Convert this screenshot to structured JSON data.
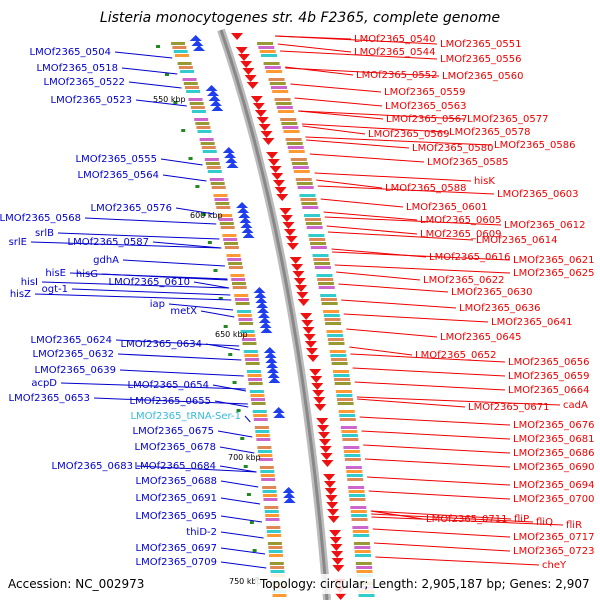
{
  "title": "Listeria monocytogenes str. 4b F2365, complete genome",
  "accession": "Accession: NC_002973",
  "summary": "Topology: circular; Length: 2,905,187 bp; Genes: 2,907",
  "colors": {
    "left_labels": "#0000cc",
    "right_labels": "#ee0000",
    "trna_label": "#33bbdd",
    "backbone": "#999999",
    "forward_strand": "#1f3fee",
    "reverse_strand": "#ee1111",
    "tick": "#228822"
  },
  "ticks": [
    "550 kbp",
    "600 kbp",
    "650 kbp",
    "700 kbp",
    "750 kbp"
  ],
  "left_labels": [
    "LMOf2365_0504",
    "LMOf2365_0518",
    "LMOf2365_0522",
    "LMOf2365_0523",
    "LMOf2365_0555",
    "LMOf2365_0564",
    "LMOf2365_0568",
    "LMOf2365_0576",
    "srlB",
    "srlE",
    "LMOf2365_0587",
    "gdhA",
    "hisE",
    "hisG",
    "hisI",
    "ogt-1",
    "hisZ",
    "LMOf2365_0610",
    "iap",
    "metX",
    "LMOf2365_0624",
    "LMOf2365_0634",
    "LMOf2365_0632",
    "LMOf2365_0639",
    "acpD",
    "LMOf2365_0654",
    "LMOf2365_0653",
    "LMOf2365_0655",
    "LMOf2365_tRNA-Ser-1",
    "LMOf2365_0675",
    "LMOf2365_0678",
    "LMOf2365_0683",
    "LMOf2365_0684",
    "LMOf2365_0688",
    "LMOf2365_0691",
    "LMOf2365_0695",
    "thiD-2",
    "LMOf2365_0697",
    "LMOf2365_0709"
  ],
  "right_labels": [
    "LMOf2365_0540",
    "LMOf2365_0544",
    "LMOf2365_0551",
    "LMOf2365_0556",
    "LMOf2365_0552",
    "LMOf2365_0560",
    "LMOf2365_0559",
    "LMOf2365_0563",
    "LMOf2365_0567",
    "LMOf2365_0577",
    "LMOf2365_0569",
    "LMOf2365_0578",
    "LMOf2365_0580",
    "LMOf2365_0586",
    "LMOf2365_0585",
    "hisK",
    "LMOf2365_0588",
    "LMOf2365_0603",
    "LMOf2365_0601",
    "LMOf2365_0605",
    "LMOf2365_0612",
    "LMOf2365_0609",
    "LMOf2365_0614",
    "LMOf2365_0616",
    "LMOf2365_0621",
    "LMOf2365_0622",
    "LMOf2365_0625",
    "LMOf2365_0630",
    "LMOf2365_0636",
    "LMOf2365_0641",
    "LMOf2365_0645",
    "LMOf2365_0652",
    "LMOf2365_0656",
    "LMOf2365_0659",
    "LMOf2365_0664",
    "LMOf2365_0671",
    "cadA",
    "LMOf2365_0676",
    "LMOf2365_0681",
    "LMOf2365_0686",
    "LMOf2365_0690",
    "LMOf2365_0694",
    "LMOf2365_0700",
    "LMOf2365_0711",
    "fliP",
    "fliQ",
    "fliR",
    "LMOf2365_0717",
    "LMOf2365_0723",
    "cheY"
  ]
}
